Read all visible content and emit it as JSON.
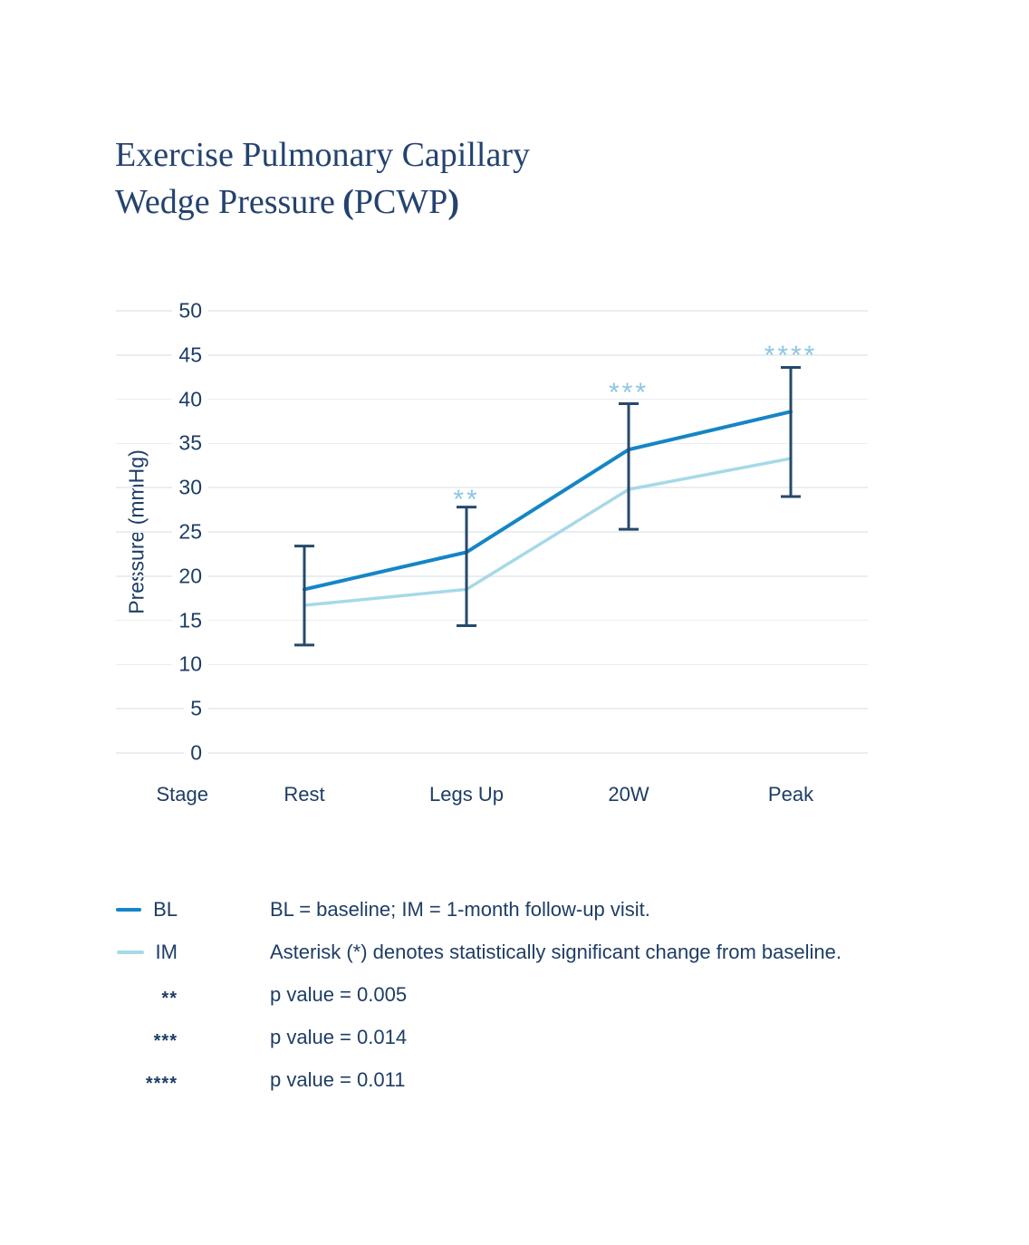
{
  "title": {
    "line1": "Exercise Pulmonary Capillary",
    "line2": "Wedge Pressure",
    "paren_open": "(",
    "acronym": "PCWP",
    "paren_close": ")"
  },
  "chart_data": {
    "type": "line",
    "categories": [
      "Rest",
      "Legs Up",
      "20W",
      "Peak"
    ],
    "series": [
      {
        "name": "BL",
        "color": "#1585c5",
        "values": [
          18.5,
          22.7,
          34.3,
          38.6
        ]
      },
      {
        "name": "IM",
        "color": "#a6d9e8",
        "values": [
          16.7,
          18.5,
          29.8,
          33.3
        ]
      }
    ],
    "error_bars": [
      {
        "category": "Rest",
        "low": 12.2,
        "high": 23.4
      },
      {
        "category": "Legs Up",
        "low": 14.4,
        "high": 27.8
      },
      {
        "category": "20W",
        "low": 25.3,
        "high": 39.5
      },
      {
        "category": "Peak",
        "low": 29.0,
        "high": 43.6
      }
    ],
    "annotations": [
      {
        "category": "Legs Up",
        "text": "**",
        "y": 29.1
      },
      {
        "category": "20W",
        "text": "***",
        "y": 41.2
      },
      {
        "category": "Peak",
        "text": "****",
        "y": 45.4
      }
    ],
    "title": "Exercise Pulmonary Capillary Wedge Pressure (PCWP)",
    "xlabel": "Stage",
    "ylabel": "Pressure (mmHg)",
    "ylim": [
      0,
      50
    ],
    "yticks": [
      50,
      45,
      40,
      35,
      30,
      25,
      20,
      15,
      10,
      5,
      0
    ],
    "grid": true,
    "legend_position": "bottom-left"
  },
  "legend": {
    "items": [
      {
        "key": "BL",
        "swatch": "bl-line",
        "description": "BL = baseline; IM = 1-month follow-up visit."
      },
      {
        "key": "IM",
        "swatch": "im-line",
        "description": "Asterisk (*) denotes statistically significant change from baseline."
      },
      {
        "key": "**",
        "swatch": "none",
        "description": "p value = 0.005"
      },
      {
        "key": "***",
        "swatch": "none",
        "description": "p value = 0.014"
      },
      {
        "key": "****",
        "swatch": "none",
        "description": "p value = 0.011"
      }
    ]
  },
  "colors": {
    "title": "#24426f",
    "text": "#1e3d66",
    "bl_line": "#1585c5",
    "im_line": "#a6d9e8",
    "error_bar": "#25496b",
    "asterisk": "#8cc6e5",
    "grid": "#e9eef2",
    "background": "#ffffff"
  }
}
